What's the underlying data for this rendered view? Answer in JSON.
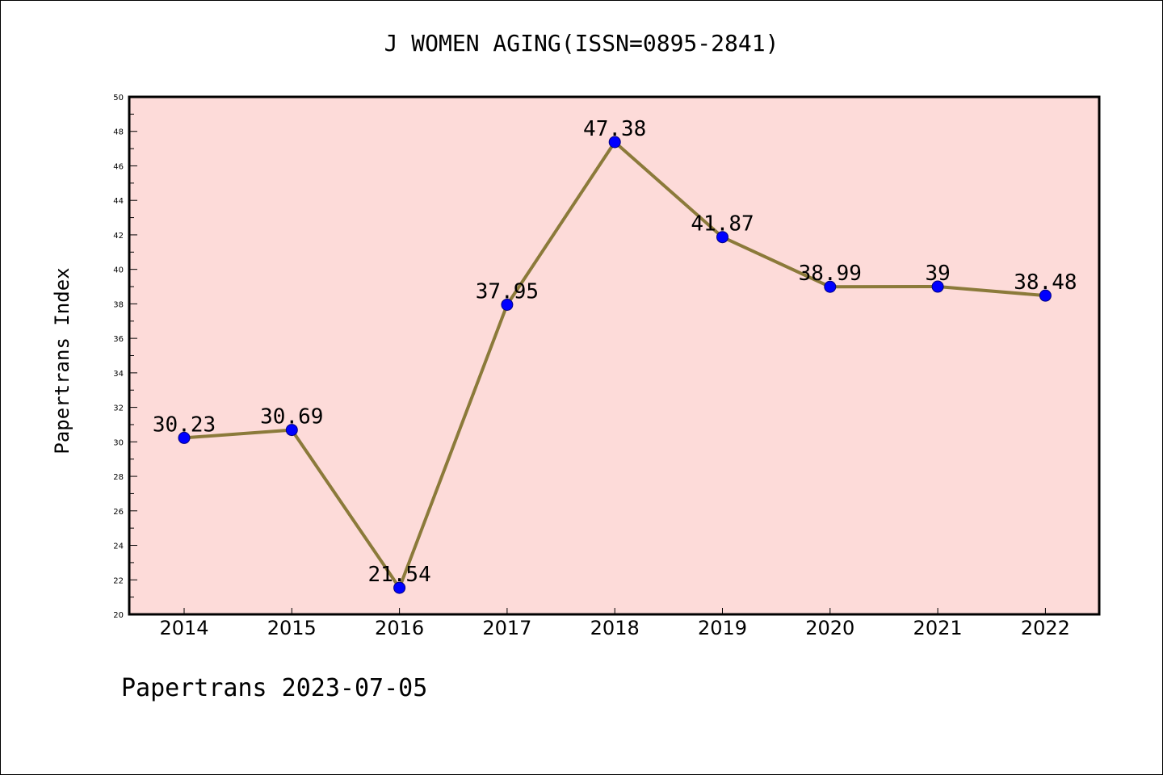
{
  "chart_data": {
    "type": "line",
    "title": "J WOMEN AGING(ISSN=0895-2841)",
    "xlabel": "",
    "ylabel": "Papertrans Index",
    "categories": [
      "2014",
      "2015",
      "2016",
      "2017",
      "2018",
      "2019",
      "2020",
      "2021",
      "2022"
    ],
    "series": [
      {
        "values": [
          30.23,
          30.69,
          21.54,
          37.95,
          47.38,
          41.87,
          38.99,
          39,
          38.48
        ],
        "data_labels": [
          "30.23",
          "30.69",
          "21.54",
          "37.95",
          "47.38",
          "41.87",
          "38.99",
          "39",
          "38.48"
        ]
      }
    ],
    "ylim": [
      20,
      50
    ],
    "y_ticks": [
      "20",
      "22",
      "24",
      "26",
      "28",
      "30",
      "32",
      "34",
      "36",
      "38",
      "40",
      "42",
      "44",
      "46",
      "48",
      "50"
    ],
    "grid": false,
    "legend": "none",
    "footer": "Papertrans 2023-07-05",
    "colors": {
      "plot_background": "#fddbd9",
      "line": "#8b7a3a",
      "marker_fill": "#0000ff",
      "marker_edge": "#000080"
    }
  }
}
